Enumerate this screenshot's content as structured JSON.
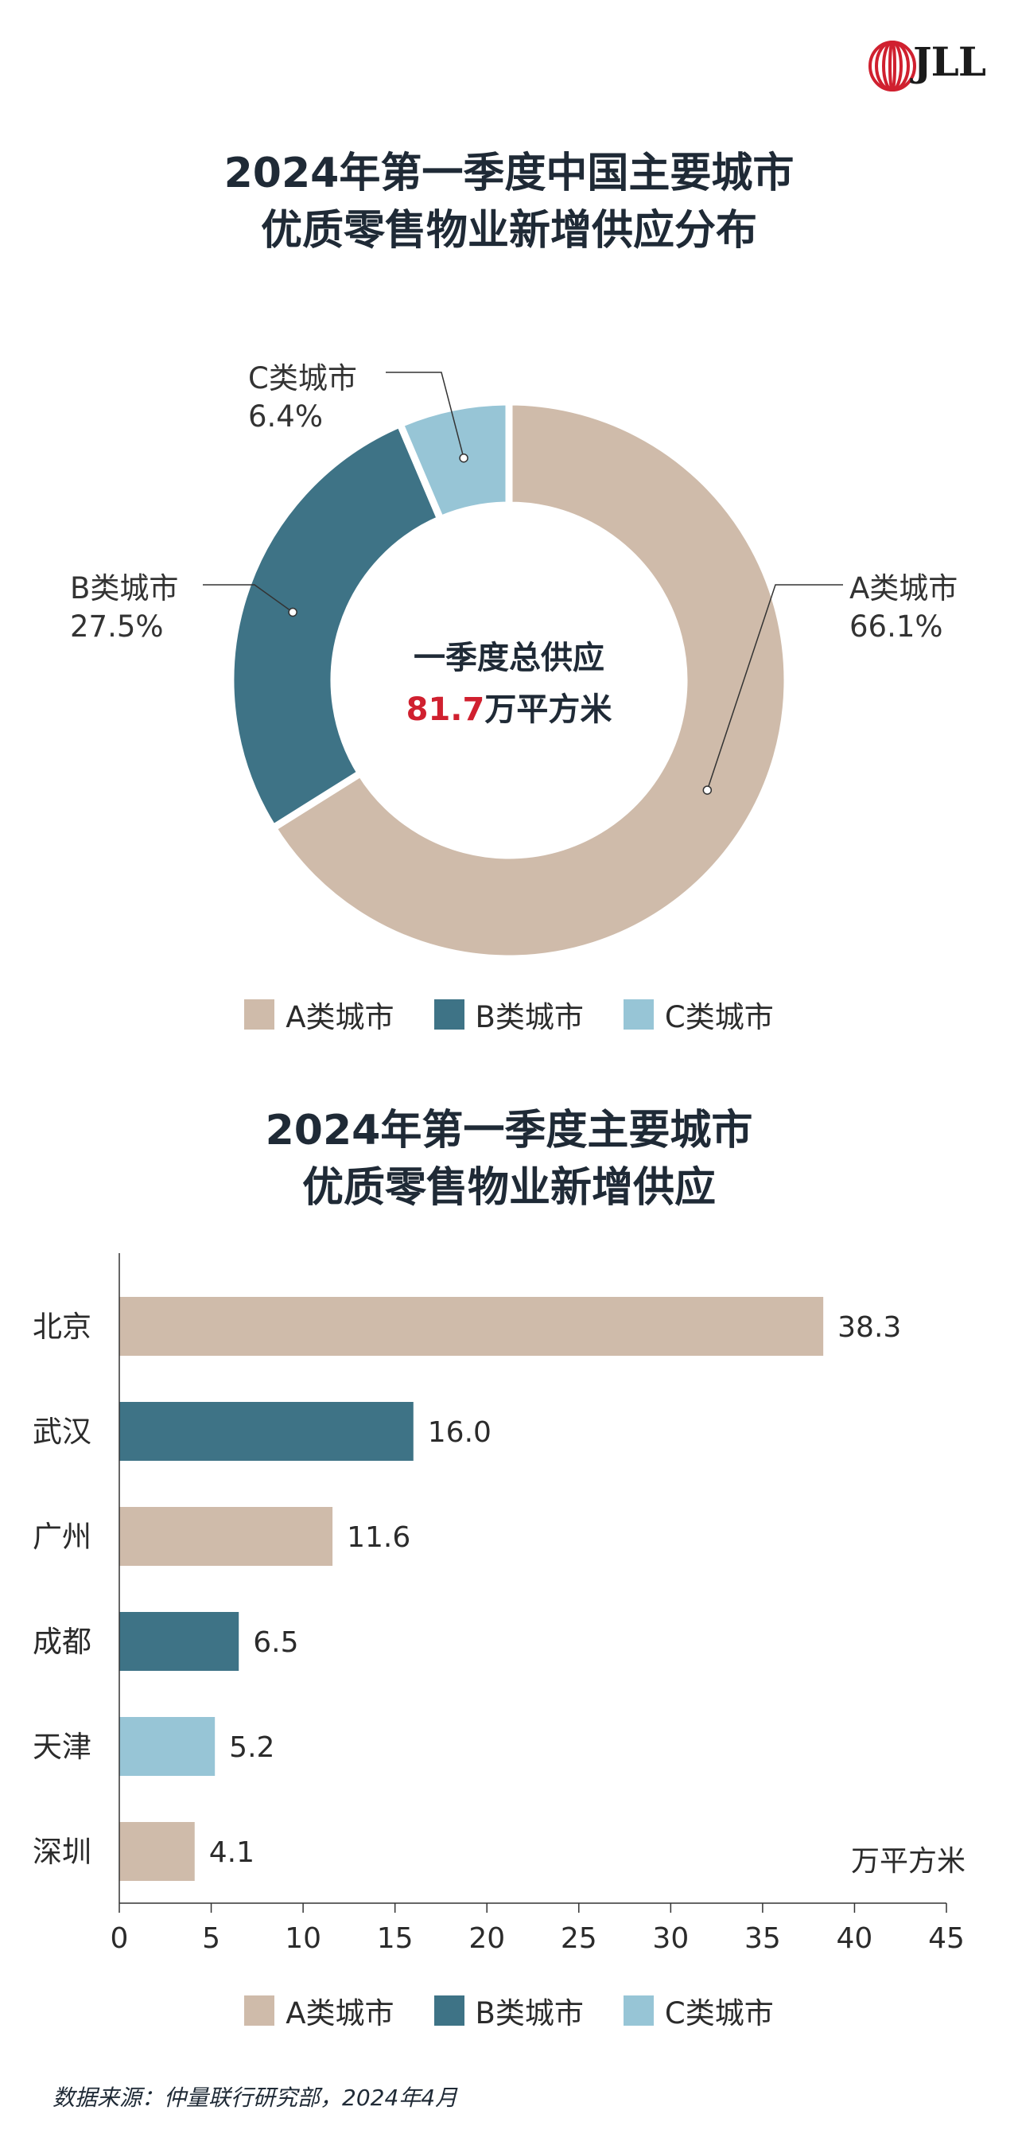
{
  "brand": "JLL",
  "colors": {
    "A": "#cfbbaa",
    "B": "#3e7386",
    "C": "#97c5d6",
    "highlight": "#d0202f",
    "logo_red": "#d0202f"
  },
  "chart_data": [
    {
      "type": "pie",
      "title_lines": [
        "2024年第一季度中国主要城市",
        "优质零售物业新增供应分布"
      ],
      "center_line1": "一季度总供应",
      "center_value": "81.7",
      "center_unit": "万平方米",
      "slices": [
        {
          "label": "A类城市",
          "value": 66.1,
          "value_text": "66.1%"
        },
        {
          "label": "B类城市",
          "value": 27.5,
          "value_text": "27.5%"
        },
        {
          "label": "C类城市",
          "value": 6.4,
          "value_text": "6.4%"
        }
      ],
      "legend": [
        "A类城市",
        "B类城市",
        "C类城市"
      ]
    },
    {
      "type": "bar",
      "orientation": "horizontal",
      "title_lines": [
        "2024年第一季度主要城市",
        "优质零售物业新增供应"
      ],
      "categories": [
        "北京",
        "武汉",
        "广州",
        "成都",
        "天津",
        "深圳"
      ],
      "values": [
        38.3,
        16.0,
        11.6,
        6.5,
        5.2,
        4.1
      ],
      "value_labels": [
        "38.3",
        "16.0",
        "11.6",
        "6.5",
        "5.2",
        "4.1"
      ],
      "city_class": [
        "A",
        "B",
        "A",
        "B",
        "C",
        "A"
      ],
      "xlim": [
        0,
        45
      ],
      "xticks": [
        0,
        5,
        10,
        15,
        20,
        25,
        30,
        35,
        40,
        45
      ],
      "unit": "万平方米",
      "legend": [
        "A类城市",
        "B类城市",
        "C类城市"
      ]
    }
  ],
  "source": "数据来源：仲量联行研究部，2024年4月"
}
